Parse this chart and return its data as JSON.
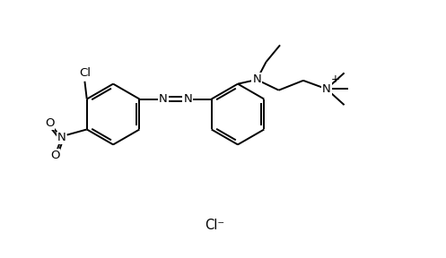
{
  "background_color": "#ffffff",
  "line_color": "#000000",
  "line_width": 1.4,
  "font_size": 9.5,
  "figsize": [
    4.97,
    2.88
  ],
  "dpi": 100,
  "xlim": [
    0,
    10
  ],
  "ylim": [
    0,
    6
  ]
}
